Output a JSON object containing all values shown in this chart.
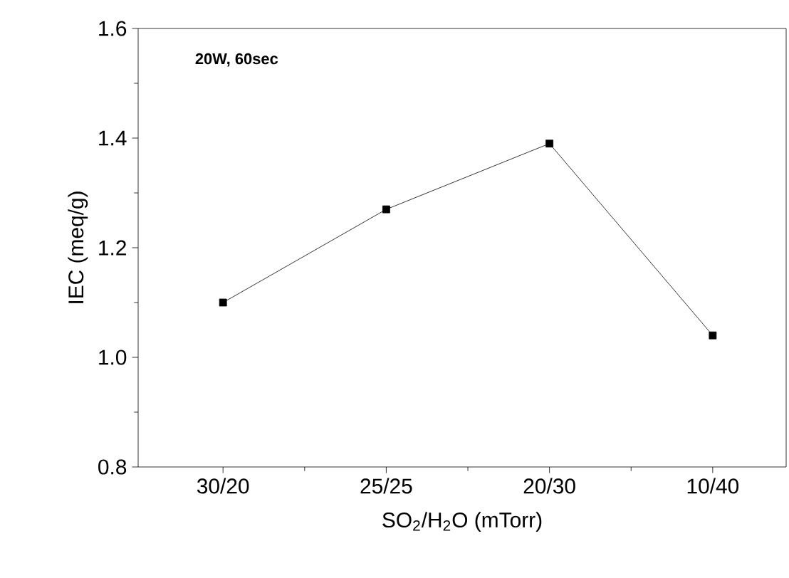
{
  "chart_data": {
    "type": "line",
    "xlabel": "SO$_{2}$/H$_{2}$O (mTorr)",
    "ylabel": "IEC (meq/g)",
    "annotations": [
      "20W, 60sec"
    ],
    "categories": [
      "30/20",
      "25/25",
      "20/30",
      "10/40"
    ],
    "values": [
      1.1,
      1.27,
      1.39,
      1.04
    ],
    "color": "#000000",
    "marker": "square",
    "line_style": "solid",
    "ylim": [
      0.8,
      1.6
    ],
    "yticks": [
      {
        "value": 0.8,
        "label": "0.8"
      },
      {
        "value": 1.0,
        "label": "1.0"
      },
      {
        "value": 1.2,
        "label": "1.2"
      },
      {
        "value": 1.4,
        "label": "1.4"
      },
      {
        "value": 1.6,
        "label": "1.6"
      }
    ],
    "grid": false
  }
}
